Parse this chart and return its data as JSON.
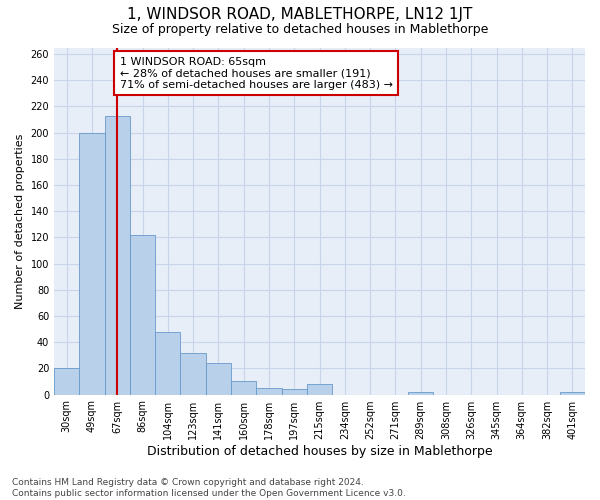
{
  "title": "1, WINDSOR ROAD, MABLETHORPE, LN12 1JT",
  "subtitle": "Size of property relative to detached houses in Mablethorpe",
  "xlabel": "Distribution of detached houses by size in Mablethorpe",
  "ylabel": "Number of detached properties",
  "footer_line1": "Contains HM Land Registry data © Crown copyright and database right 2024.",
  "footer_line2": "Contains public sector information licensed under the Open Government Licence v3.0.",
  "categories": [
    "30sqm",
    "49sqm",
    "67sqm",
    "86sqm",
    "104sqm",
    "123sqm",
    "141sqm",
    "160sqm",
    "178sqm",
    "197sqm",
    "215sqm",
    "234sqm",
    "252sqm",
    "271sqm",
    "289sqm",
    "308sqm",
    "326sqm",
    "345sqm",
    "364sqm",
    "382sqm",
    "401sqm"
  ],
  "values": [
    20,
    200,
    213,
    122,
    48,
    32,
    24,
    10,
    5,
    4,
    8,
    0,
    0,
    0,
    2,
    0,
    0,
    0,
    0,
    0,
    2
  ],
  "bar_color": "#b8d0ea",
  "bar_edge_color": "#6699cc",
  "grid_color": "#c8d4e8",
  "background_color": "#e8eef8",
  "annotation_text": "1 WINDSOR ROAD: 65sqm\n← 28% of detached houses are smaller (191)\n71% of semi-detached houses are larger (483) →",
  "property_line_x": 2.0,
  "property_line_color": "#cc0000",
  "ylim_max": 265,
  "ytick_step": 20,
  "annotation_box_color": "#ffffff",
  "annotation_box_edge": "#cc0000",
  "title_fontsize": 11,
  "subtitle_fontsize": 9,
  "annotation_fontsize": 8,
  "ylabel_fontsize": 8,
  "xlabel_fontsize": 9,
  "tick_fontsize": 7,
  "footer_fontsize": 6.5
}
